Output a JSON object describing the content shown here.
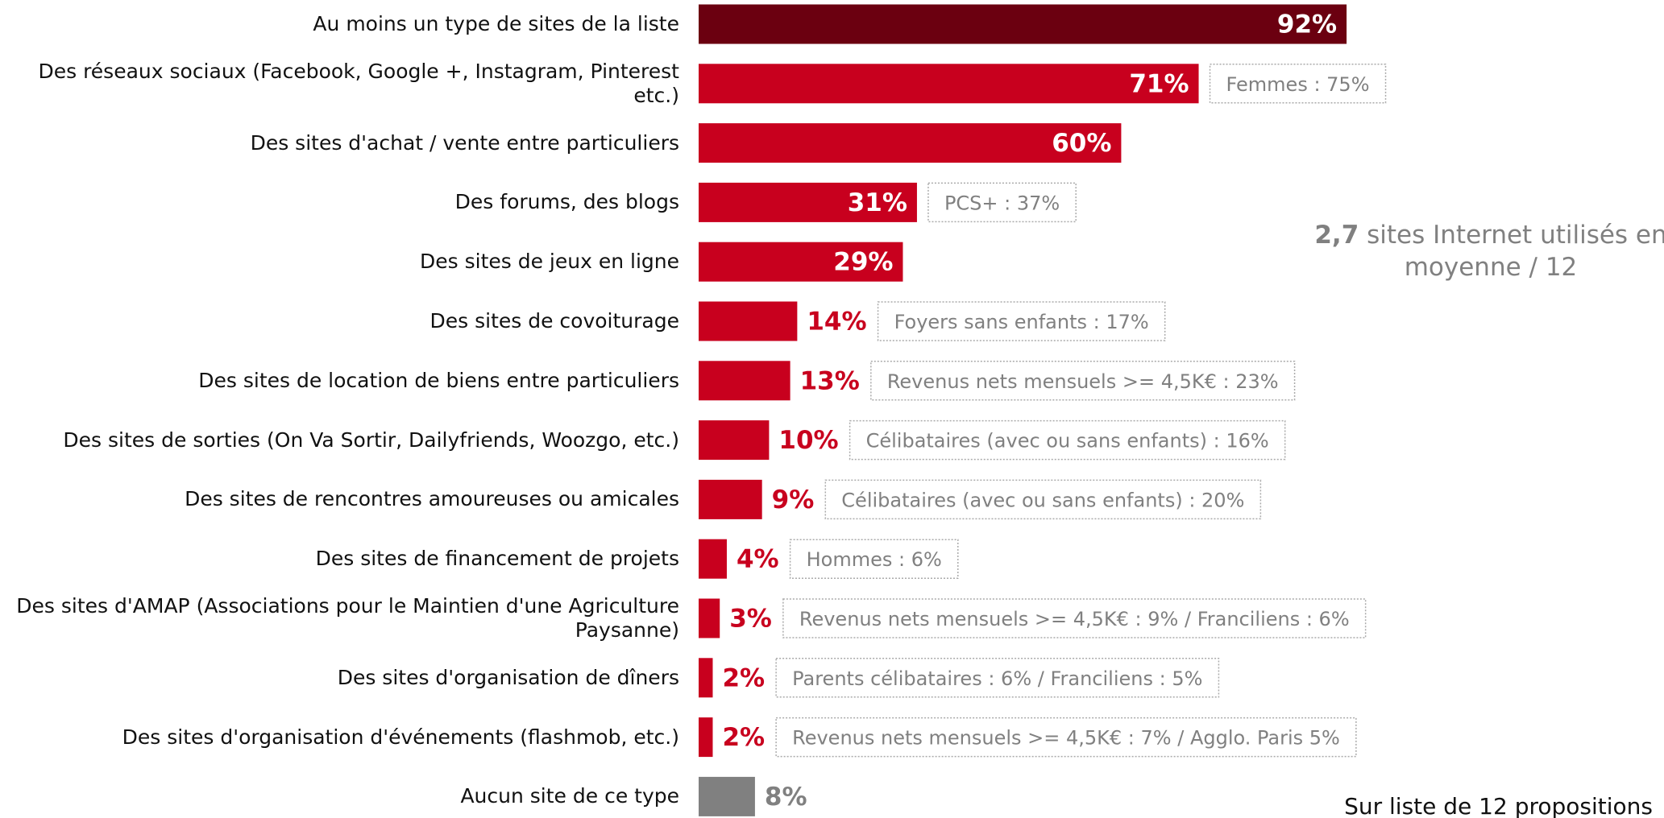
{
  "chart_data": {
    "type": "hbar",
    "categories": [
      "Au moins un type de sites de la liste",
      "Des réseaux sociaux (Facebook, Google +, Instagram, Pinterest etc.)",
      "Des sites d'achat / vente entre particuliers",
      "Des forums, des blogs",
      "Des sites de jeux en ligne",
      "Des sites de covoiturage",
      "Des sites de location de biens entre particuliers",
      "Des sites de sorties (On Va Sortir, Dailyfriends, Woozgo, etc.)",
      "Des sites de rencontres amoureuses ou amicales",
      "Des sites de financement de projets",
      "Des sites d'AMAP (Associations pour le Maintien d'une Agriculture Paysanne)",
      "Des sites d'organisation de dîners",
      "Des sites d'organisation d'événements (flashmob, etc.)",
      "Aucun site de ce type"
    ],
    "values": [
      92,
      71,
      60,
      31,
      29,
      14,
      13,
      10,
      9,
      4,
      3,
      2,
      2,
      8
    ],
    "value_labels": [
      "92%",
      "71%",
      "60%",
      "31%",
      "29%",
      "14%",
      "13%",
      "10%",
      "9%",
      "4%",
      "3%",
      "2%",
      "2%",
      "8%"
    ],
    "colors": [
      "#6b0010",
      "#c8001e",
      "#c8001e",
      "#c8001e",
      "#c8001e",
      "#c8001e",
      "#c8001e",
      "#c8001e",
      "#c8001e",
      "#c8001e",
      "#c8001e",
      "#c8001e",
      "#c8001e",
      "#808080"
    ],
    "annotations": [
      null,
      "Femmes : 75%",
      null,
      "PCS+ : 37%",
      null,
      "Foyers sans enfants : 17%",
      "Revenus nets mensuels >= 4,5K€ : 23%",
      "Célibataires (avec ou sans enfants) : 16%",
      "Célibataires (avec ou sans enfants) : 20%",
      "Hommes : 6%",
      "Revenus nets mensuels >= 4,5K€ : 9% / Franciliens : 6%",
      "Parents célibataires : 6% / Franciliens : 5%",
      "Revenus nets mensuels >= 4,5K€ : 7% / Agglo. Paris 5%",
      null
    ],
    "side_note": {
      "value_text": "2,7",
      "text": "sites Internet utilisés en moyenne / 12"
    },
    "footnote": "Sur liste de 12 propositions"
  }
}
